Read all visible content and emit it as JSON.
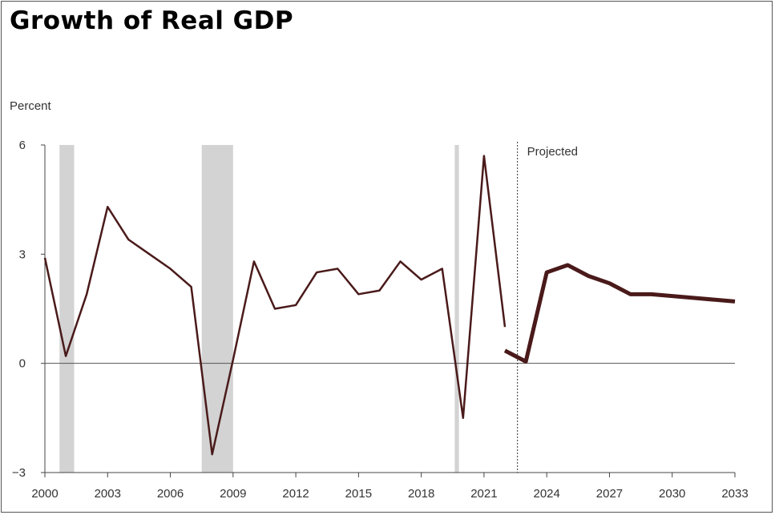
{
  "title": "Growth of Real GDP",
  "chart_data": {
    "type": "line",
    "ylabel": "Percent",
    "xlabel": "",
    "xlim": [
      2000,
      2033
    ],
    "ylim": [
      -3,
      6
    ],
    "x_ticks": [
      2000,
      2003,
      2006,
      2009,
      2012,
      2015,
      2018,
      2021,
      2024,
      2027,
      2030,
      2033
    ],
    "y_ticks": [
      -3,
      0,
      3,
      6
    ],
    "y_tick_labels": [
      "−3",
      "0",
      "3",
      "6"
    ],
    "annotations": [
      {
        "text": "Projected",
        "x": 2022.6
      }
    ],
    "recessions": [
      [
        2000.7,
        2001.4
      ],
      [
        2007.5,
        2009.0
      ],
      [
        2019.6,
        2019.8
      ]
    ],
    "series": [
      {
        "style": "actual",
        "color": "#4a1a1a",
        "x": [
          2000,
          2001,
          2002,
          2003,
          2004,
          2005,
          2006,
          2007,
          2008,
          2009,
          2010,
          2011,
          2012,
          2013,
          2014,
          2015,
          2016,
          2017,
          2018,
          2019,
          2020,
          2021,
          2022
        ],
        "y": [
          2.9,
          0.2,
          1.9,
          4.3,
          3.4,
          3.0,
          2.6,
          2.1,
          -2.5,
          0.1,
          2.8,
          1.5,
          1.6,
          2.5,
          2.6,
          1.9,
          2.0,
          2.8,
          2.3,
          2.6,
          -1.5,
          5.7,
          1.0
        ]
      },
      {
        "style": "projected",
        "color": "#4a1a1a",
        "x": [
          2022,
          2023,
          2024,
          2025,
          2026,
          2027,
          2028,
          2029,
          2030,
          2031,
          2032,
          2033
        ],
        "y": [
          0.35,
          0.05,
          2.5,
          2.7,
          2.4,
          2.2,
          1.9,
          1.9,
          1.85,
          1.8,
          1.75,
          1.7
        ]
      }
    ]
  }
}
